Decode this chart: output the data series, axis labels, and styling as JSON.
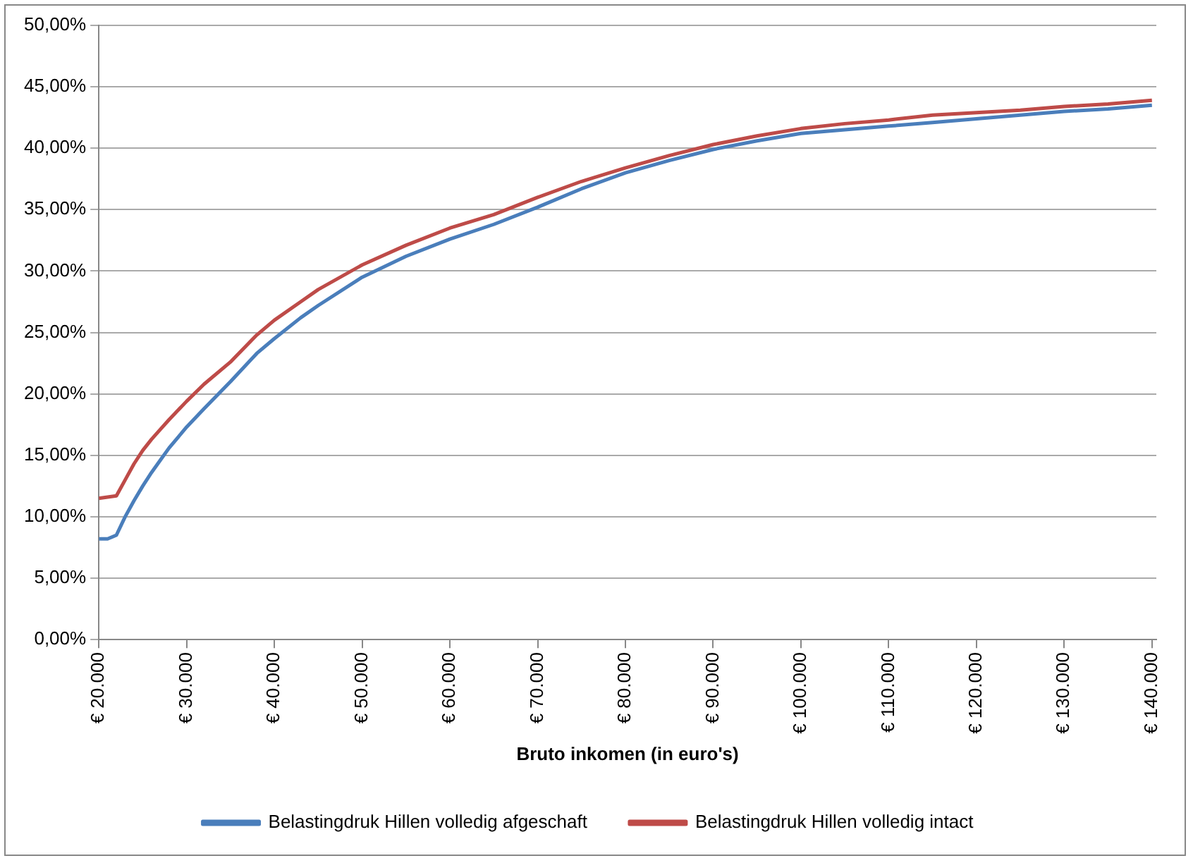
{
  "chart_data": {
    "type": "line",
    "xlabel": "Bruto inkomen (in euro's)",
    "x": [
      20000,
      21000,
      22000,
      23000,
      24000,
      25000,
      26000,
      27000,
      28000,
      30000,
      32000,
      35000,
      38000,
      40000,
      43000,
      45000,
      50000,
      55000,
      60000,
      65000,
      70000,
      75000,
      80000,
      85000,
      90000,
      95000,
      100000,
      105000,
      110000,
      115000,
      120000,
      125000,
      130000,
      135000,
      140000
    ],
    "series": [
      {
        "name": "Belastingdruk Hillen volledig afgeschaft",
        "color": "#4a7ebb",
        "values": [
          8.2,
          8.2,
          8.5,
          10,
          11.3,
          12.5,
          13.6,
          14.6,
          15.6,
          17.3,
          18.8,
          21.0,
          23.3,
          24.5,
          26.2,
          27.2,
          29.5,
          31.2,
          32.6,
          33.8,
          35.2,
          36.7,
          38.0,
          39.0,
          39.9,
          40.6,
          41.2,
          41.5,
          41.8,
          42.1,
          42.4,
          42.7,
          43.0,
          43.2,
          43.5
        ]
      },
      {
        "name": "Belastingdruk Hillen volledig intact",
        "color": "#be4b48",
        "values": [
          11.5,
          11.6,
          11.7,
          13,
          14.3,
          15.4,
          16.3,
          17.1,
          17.9,
          19.4,
          20.8,
          22.6,
          24.8,
          26.0,
          27.5,
          28.5,
          30.5,
          32.1,
          33.5,
          34.6,
          36.0,
          37.3,
          38.4,
          39.4,
          40.3,
          41.0,
          41.6,
          42.0,
          42.3,
          42.7,
          42.9,
          43.1,
          43.4,
          43.6,
          43.9
        ]
      }
    ],
    "xlim": [
      20000,
      140500
    ],
    "xticks": [
      {
        "value": 20000,
        "label": "€ 20.000"
      },
      {
        "value": 30000,
        "label": "€ 30.000"
      },
      {
        "value": 40000,
        "label": "€ 40.000"
      },
      {
        "value": 50000,
        "label": "€ 50.000"
      },
      {
        "value": 60000,
        "label": "€ 60.000"
      },
      {
        "value": 70000,
        "label": "€ 70.000"
      },
      {
        "value": 80000,
        "label": "€ 80.000"
      },
      {
        "value": 90000,
        "label": "€ 90.000"
      },
      {
        "value": 100000,
        "label": "€ 100.000"
      },
      {
        "value": 110000,
        "label": "€ 110.000"
      },
      {
        "value": 120000,
        "label": "€ 120.000"
      },
      {
        "value": 130000,
        "label": "€ 130.000"
      },
      {
        "value": 140000,
        "label": "€ 140.000"
      }
    ],
    "ylim": [
      0,
      50
    ],
    "yticks": [
      {
        "value": 0,
        "label": "0,00%"
      },
      {
        "value": 5,
        "label": "5,00%"
      },
      {
        "value": 10,
        "label": "10,00%"
      },
      {
        "value": 15,
        "label": "15,00%"
      },
      {
        "value": 20,
        "label": "20,00%"
      },
      {
        "value": 25,
        "label": "25,00%"
      },
      {
        "value": 30,
        "label": "30,00%"
      },
      {
        "value": 35,
        "label": "35,00%"
      },
      {
        "value": 40,
        "label": "40,00%"
      },
      {
        "value": 45,
        "label": "45,00%"
      },
      {
        "value": 50,
        "label": "50,00%"
      }
    ],
    "grid": "y",
    "legend": "bottom",
    "marker": "none",
    "line_style": "solid"
  }
}
